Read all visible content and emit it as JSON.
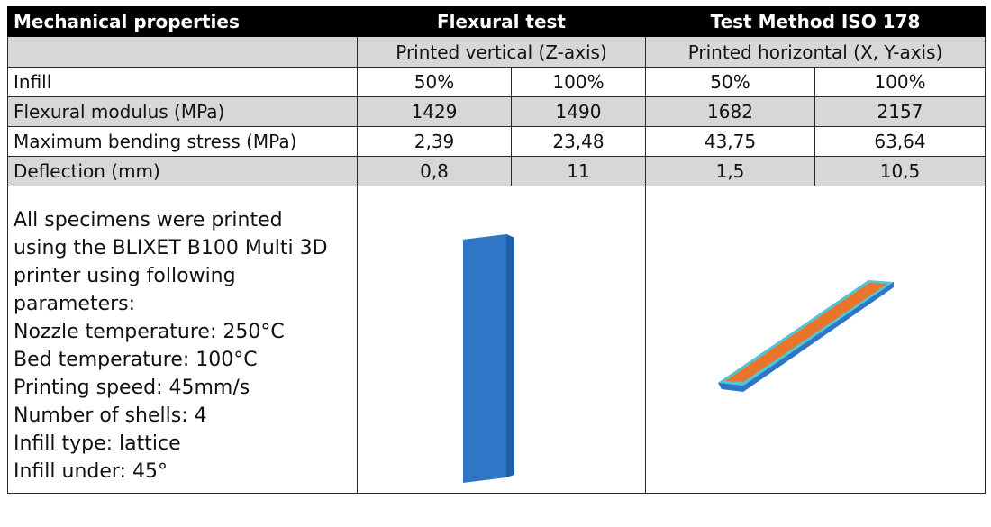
{
  "header": {
    "title": "Mechanical properties",
    "test": "Flexural test",
    "method": "Test Method ISO 178"
  },
  "subheader": {
    "vertical": "Printed vertical (Z-axis)",
    "horizontal": "Printed horizontal (X, Y-axis)"
  },
  "rows": [
    {
      "label": "Infill",
      "values": [
        "50%",
        "100%",
        "50%",
        "100%"
      ]
    },
    {
      "label": "Flexural modulus (MPa)",
      "values": [
        "1429",
        "1490",
        "1682",
        "2157"
      ]
    },
    {
      "label": "Maximum bending stress (MPa)",
      "values": [
        "2,39",
        "23,48",
        "43,75",
        "63,64"
      ]
    },
    {
      "label": "Deflection (mm)",
      "values": [
        "0,8",
        "11",
        "1,5",
        "10,5"
      ]
    }
  ],
  "notes": [
    "All specimens were printed",
    "using the BLIXET B100 Multi 3D",
    "printer using following",
    "parameters:",
    "Nozzle temperature: 250°C",
    "Bed temperature: 100°C",
    "Printing speed: 45mm/s",
    "Number of shells: 4",
    "Infill type: lattice",
    "Infill under: 45°"
  ],
  "colors": {
    "header_bg": "#000000",
    "shaded_row": "#d7d7d7",
    "specimen_shell": "#2f76c6",
    "specimen_edge": "#4fc6d8",
    "specimen_infill": "#e8752a"
  },
  "images": {
    "vertical_specimen": "vertical-specimen-image",
    "horizontal_specimen": "horizontal-specimen-image"
  }
}
